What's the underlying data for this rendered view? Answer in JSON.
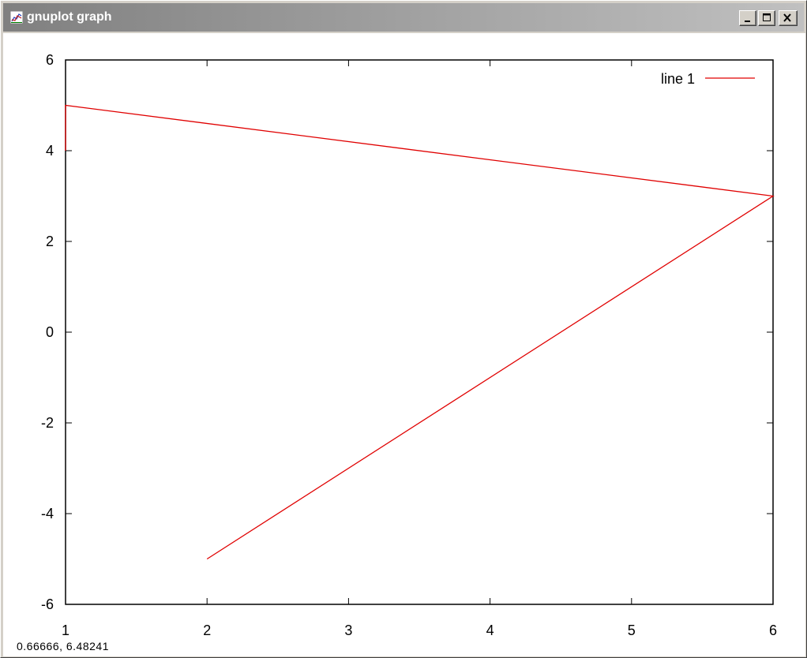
{
  "window": {
    "title": "gnuplot graph",
    "buttons": [
      "minimize",
      "maximize",
      "close"
    ]
  },
  "status": {
    "coordinates": "0.66666, 6.48241"
  },
  "colors": {
    "line": "#e00000",
    "titlebar": "#808080",
    "background": "#ffffff"
  },
  "chart_data": {
    "type": "line",
    "xlim": [
      1,
      6
    ],
    "ylim": [
      -6,
      6
    ],
    "xticks": [
      "1",
      "2",
      "3",
      "4",
      "5",
      "6"
    ],
    "yticks": [
      "6",
      "4",
      "2",
      "0",
      "-2",
      "-4",
      "-6"
    ],
    "xtick_values": [
      1,
      2,
      3,
      4,
      5,
      6
    ],
    "ytick_values": [
      6,
      4,
      2,
      0,
      -2,
      -4,
      -6
    ],
    "series": [
      {
        "name": "line 1",
        "color": "#e00000",
        "x": [
          1,
          1,
          6,
          2
        ],
        "y": [
          4,
          5,
          3,
          -5
        ]
      }
    ],
    "legend_position": "top-right",
    "grid": false
  }
}
